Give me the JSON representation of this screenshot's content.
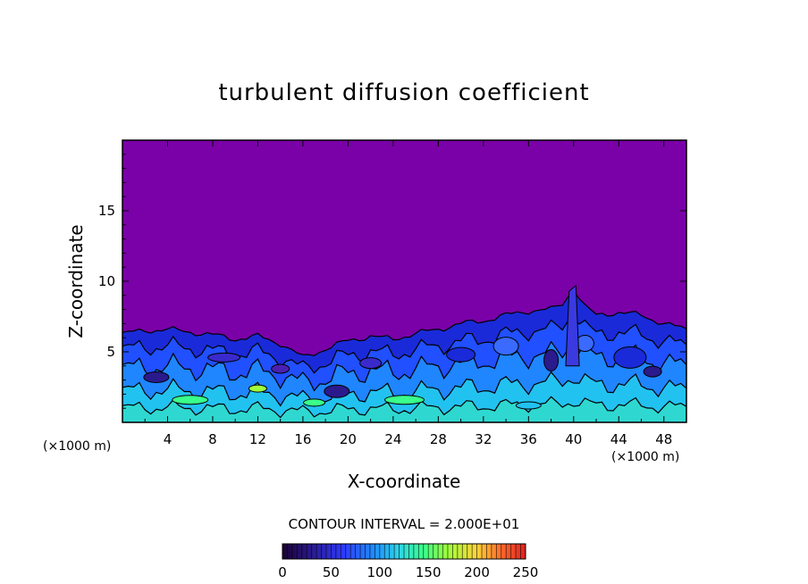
{
  "chart_data": {
    "type": "heatmap",
    "title": "turbulent diffusion coefficient",
    "xlabel": "X-coordinate",
    "ylabel": "Z-coordinate",
    "x_unit_left": "(×1000 m)",
    "x_unit_right": "(×1000 m)",
    "xlim": [
      0,
      50
    ],
    "ylim": [
      0,
      20
    ],
    "x_ticks": [
      "4",
      "8",
      "12",
      "16",
      "20",
      "24",
      "28",
      "32",
      "36",
      "40",
      "44",
      "48"
    ],
    "x_tick_values": [
      4,
      8,
      12,
      16,
      20,
      24,
      28,
      32,
      36,
      40,
      44,
      48
    ],
    "y_ticks": [
      "5",
      "10",
      "15"
    ],
    "y_tick_values": [
      5,
      10,
      15
    ],
    "contour_interval_text": "CONTOUR INTERVAL = 2.000E+01",
    "contour_interval": 20,
    "colorbar": {
      "ticks": [
        "0",
        "50",
        "100",
        "150",
        "200",
        "250"
      ],
      "tick_values": [
        0,
        50,
        100,
        150,
        200,
        250
      ],
      "range": [
        0,
        250
      ]
    },
    "boundary_layer_top": {
      "x": [
        0,
        2,
        4,
        6,
        8,
        10,
        12,
        14,
        16,
        18,
        20,
        22,
        24,
        26,
        28,
        30,
        32,
        34,
        36,
        38,
        39,
        40,
        41,
        42,
        44,
        46,
        48,
        50
      ],
      "z": [
        6.3,
        6.5,
        6.6,
        6.4,
        6.2,
        5.9,
        6.1,
        5.6,
        4.6,
        5.2,
        5.8,
        6.1,
        5.9,
        6.3,
        6.6,
        7.0,
        7.2,
        7.6,
        7.9,
        8.0,
        8.4,
        9.5,
        8.2,
        7.6,
        7.8,
        7.6,
        7.0,
        6.6
      ]
    },
    "background_color": "#7a00a8",
    "colors": [
      "#1a0033",
      "#2a1a8c",
      "#2e3aff",
      "#1f8fff",
      "#2ed5e6",
      "#3aff8a",
      "#a0ff3a",
      "#ffd23a",
      "#ff6a2a",
      "#e02020"
    ]
  }
}
